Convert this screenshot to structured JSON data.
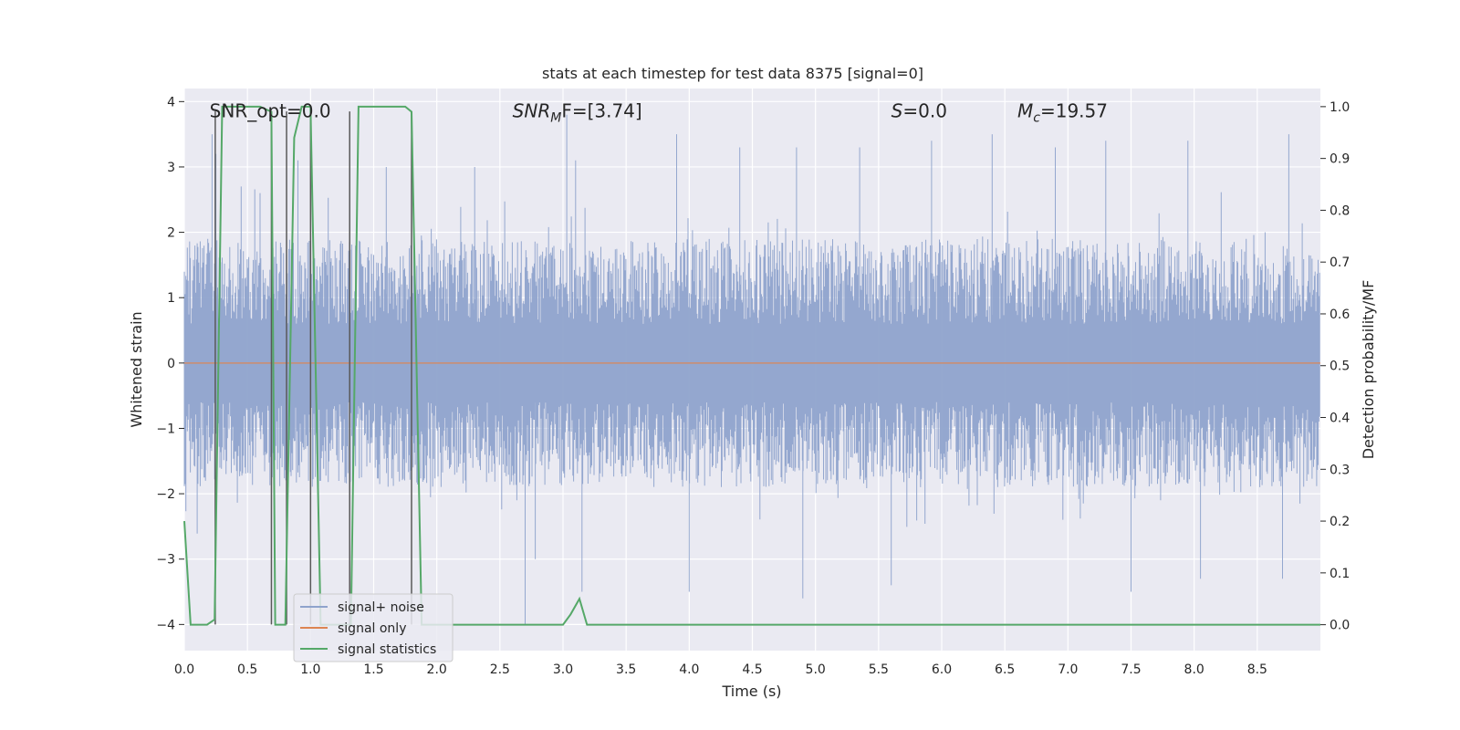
{
  "chart_data": {
    "type": "line",
    "title": "stats at each timestep for test data 8375 [signal=0]",
    "xlabel": "Time (s)",
    "ylabel": "Whitened strain",
    "y2label": "Detection probability/MF",
    "xlim": [
      0,
      9.0
    ],
    "ylim": [
      -4.4,
      4.2
    ],
    "y2lim": [
      -0.05,
      1.035
    ],
    "xticks": [
      0.0,
      0.5,
      1.0,
      1.5,
      2.0,
      2.5,
      3.0,
      3.5,
      4.0,
      4.5,
      5.0,
      5.5,
      6.0,
      6.5,
      7.0,
      7.5,
      8.0,
      8.5
    ],
    "xtick_labels": [
      "0.0",
      "0.5",
      "1.0",
      "1.5",
      "2.0",
      "2.5",
      "3.0",
      "3.5",
      "4.0",
      "4.5",
      "5.0",
      "5.5",
      "6.0",
      "6.5",
      "7.0",
      "7.5",
      "8.0",
      "8.5"
    ],
    "yticks": [
      -4,
      -3,
      -2,
      -1,
      0,
      1,
      2,
      3,
      4
    ],
    "ytick_labels": [
      "−4",
      "−3",
      "−2",
      "−1",
      "0",
      "1",
      "2",
      "3",
      "4"
    ],
    "y2ticks": [
      0.0,
      0.1,
      0.2,
      0.3,
      0.4,
      0.5,
      0.6,
      0.7,
      0.8,
      0.9,
      1.0
    ],
    "y2tick_labels": [
      "0.0",
      "0.1",
      "0.2",
      "0.3",
      "0.4",
      "0.5",
      "0.6",
      "0.7",
      "0.8",
      "0.9",
      "1.0"
    ],
    "grid": true,
    "legend_position": "lower-left",
    "annotations": [
      {
        "name": "snr-opt",
        "text": "SNR_opt=0.0",
        "x": 0.2,
        "y": 3.86
      },
      {
        "name": "snr-mf",
        "text": "SNR_MF=[3.74]",
        "base": "SNR",
        "sub": "M",
        "rest": "F=[3.74]",
        "x": 2.6,
        "y": 3.86
      },
      {
        "name": "s-value",
        "text": "S=0.0",
        "base": "S",
        "rest": "=0.0",
        "x": 5.6,
        "y": 3.86
      },
      {
        "name": "mc-value",
        "text": "Mc=19.57",
        "base": "M",
        "sub": "c",
        "rest": "=19.57",
        "x": 6.6,
        "y": 3.86
      }
    ],
    "series": [
      {
        "name": "signal+ noise",
        "color": "#8fa3cc",
        "axis": "left",
        "style": "noise",
        "envelope": {
          "upper_typical": 1.9,
          "lower_typical": -1.9
        },
        "spikes": [
          {
            "x": 0.22,
            "y": 3.5
          },
          {
            "x": 0.25,
            "y": 3.2
          },
          {
            "x": 0.45,
            "y": 2.7
          },
          {
            "x": 0.6,
            "y": 2.6
          },
          {
            "x": 0.9,
            "y": 3.1
          },
          {
            "x": 1.6,
            "y": 3.0
          },
          {
            "x": 2.3,
            "y": 3.0
          },
          {
            "x": 2.7,
            "y": -4.0
          },
          {
            "x": 2.78,
            "y": -3.0
          },
          {
            "x": 3.03,
            "y": 3.8
          },
          {
            "x": 3.1,
            "y": 3.1
          },
          {
            "x": 3.15,
            "y": -3.5
          },
          {
            "x": 3.9,
            "y": 3.5
          },
          {
            "x": 4.0,
            "y": -3.5
          },
          {
            "x": 4.4,
            "y": 3.3
          },
          {
            "x": 4.85,
            "y": 3.3
          },
          {
            "x": 4.9,
            "y": -3.6
          },
          {
            "x": 5.35,
            "y": 3.3
          },
          {
            "x": 5.6,
            "y": -3.4
          },
          {
            "x": 5.92,
            "y": 3.4
          },
          {
            "x": 6.4,
            "y": 3.5
          },
          {
            "x": 6.9,
            "y": 3.3
          },
          {
            "x": 7.3,
            "y": 3.4
          },
          {
            "x": 7.5,
            "y": -3.5
          },
          {
            "x": 7.95,
            "y": 3.4
          },
          {
            "x": 8.05,
            "y": -3.3
          },
          {
            "x": 8.75,
            "y": 3.5
          },
          {
            "x": 8.7,
            "y": -3.3
          }
        ]
      },
      {
        "name": "signal only",
        "color": "#dd8452",
        "axis": "left",
        "x": [
          0.0,
          9.0
        ],
        "y": [
          0.0,
          0.0
        ]
      },
      {
        "name": "signal statistics",
        "color": "#55a868",
        "axis": "right",
        "x": [
          0.0,
          0.05,
          0.18,
          0.24,
          0.3,
          0.6,
          0.69,
          0.72,
          0.75,
          0.8,
          0.87,
          0.93,
          1.0,
          1.08,
          1.15,
          1.32,
          1.38,
          1.75,
          1.8,
          1.88,
          3.0,
          3.06,
          3.13,
          3.19,
          9.0
        ],
        "y": [
          0.2,
          0.0,
          0.0,
          0.01,
          1.0,
          1.0,
          0.99,
          0.0,
          0.0,
          0.0,
          0.94,
          1.0,
          1.0,
          0.0,
          0.0,
          0.0,
          1.0,
          1.0,
          0.99,
          0.0,
          0.0,
          0.02,
          0.05,
          0.0,
          0.0
        ]
      }
    ],
    "vertical_markers": {
      "color": "#595959",
      "axis": "left",
      "lines": [
        {
          "x": 0.245,
          "y0": -4.0,
          "y1": 3.85
        },
        {
          "x": 0.69,
          "y0": -4.0,
          "y1": 3.85
        },
        {
          "x": 0.81,
          "y0": -4.0,
          "y1": 3.85
        },
        {
          "x": 1.0,
          "y0": -4.0,
          "y1": 3.85
        },
        {
          "x": 1.31,
          "y0": -4.0,
          "y1": 3.85
        },
        {
          "x": 1.8,
          "y0": -4.0,
          "y1": 3.85
        }
      ]
    }
  }
}
